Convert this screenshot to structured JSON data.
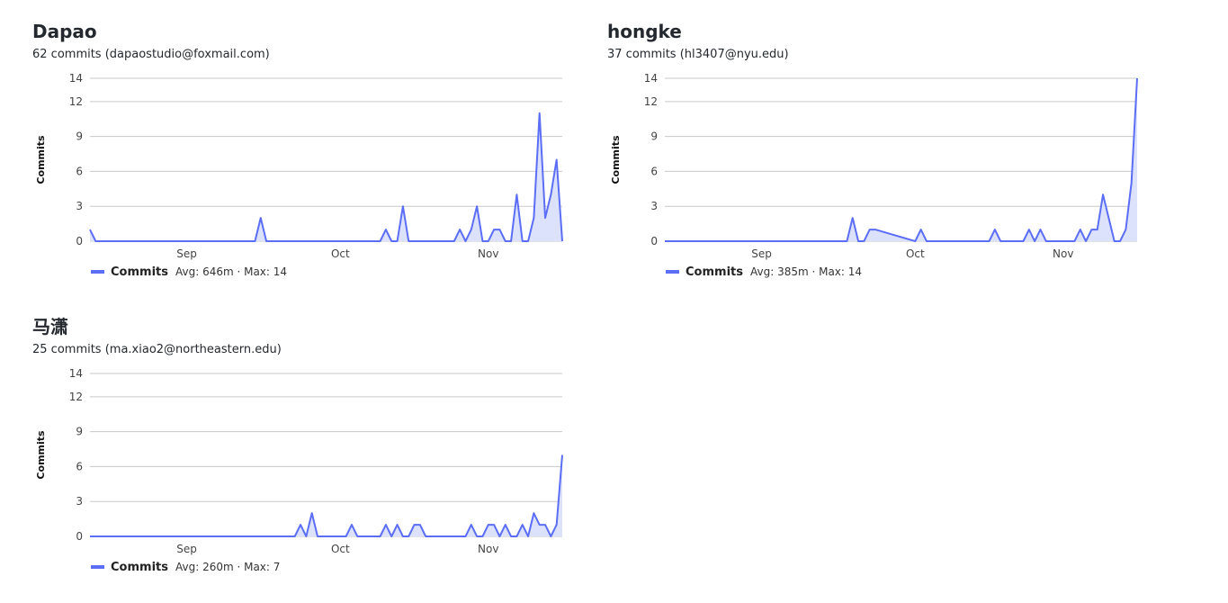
{
  "contributors": [
    {
      "name": "Dapao",
      "summary": "62 commits (dapaostudio@foxmail.com)"
    },
    {
      "name": "hongke",
      "summary": "37 commits (hl3407@nyu.edu)"
    },
    {
      "name": "马潇",
      "summary": "25 commits (ma.xiao2@northeastern.edu)"
    }
  ],
  "colors": {
    "line": "#5b6ef5",
    "fill": "#dde2fc",
    "grid": "#c8c8c8",
    "text": "#24292f"
  },
  "chart_data": [
    {
      "type": "area",
      "title": "Dapao",
      "xlabel": "",
      "ylabel": "Commits",
      "ylim": [
        0,
        14
      ],
      "yticks": [
        0,
        3,
        6,
        9,
        12,
        14
      ],
      "x_range": [
        0,
        83
      ],
      "xticks": [
        {
          "label": "Sep",
          "x": 17
        },
        {
          "label": "Oct",
          "x": 44
        },
        {
          "label": "Nov",
          "x": 70
        }
      ],
      "x": [
        0,
        1,
        29,
        30,
        31,
        51,
        52,
        53,
        54,
        55,
        56,
        64,
        65,
        66,
        67,
        68,
        69,
        70,
        71,
        72,
        73,
        74,
        75,
        76,
        77,
        78,
        79,
        80,
        81,
        82,
        83
      ],
      "values": [
        1,
        0,
        0,
        2,
        0,
        0,
        1,
        0,
        0,
        3,
        0,
        0,
        1,
        0,
        1,
        3,
        0,
        0,
        1,
        1,
        0,
        0,
        4,
        0,
        0,
        2,
        11,
        2,
        4,
        7,
        0
      ],
      "legend": {
        "label": "Commits",
        "summary": "Avg: 646m · Max: 14"
      }
    },
    {
      "type": "area",
      "title": "hongke",
      "xlabel": "",
      "ylabel": "Commits",
      "ylim": [
        0,
        14
      ],
      "yticks": [
        0,
        3,
        6,
        9,
        12,
        14
      ],
      "x_range": [
        0,
        83
      ],
      "xticks": [
        {
          "label": "Sep",
          "x": 17
        },
        {
          "label": "Oct",
          "x": 44
        },
        {
          "label": "Nov",
          "x": 70
        }
      ],
      "x": [
        0,
        32,
        33,
        34,
        35,
        36,
        37,
        44,
        45,
        46,
        57,
        58,
        59,
        63,
        64,
        65,
        66,
        67,
        72,
        73,
        74,
        75,
        76,
        77,
        78,
        79,
        80,
        81,
        82,
        83
      ],
      "values": [
        0,
        0,
        2,
        0,
        0,
        1,
        1,
        0,
        1,
        0,
        0,
        1,
        0,
        0,
        1,
        0,
        1,
        0,
        0,
        1,
        0,
        1,
        1,
        4,
        2,
        0,
        0,
        1,
        5,
        14
      ],
      "legend": {
        "label": "Commits",
        "summary": "Avg: 385m · Max: 14"
      }
    },
    {
      "type": "area",
      "title": "马潇",
      "xlabel": "",
      "ylabel": "Commits",
      "ylim": [
        0,
        14
      ],
      "yticks": [
        0,
        3,
        6,
        9,
        12,
        14
      ],
      "x_range": [
        0,
        83
      ],
      "xticks": [
        {
          "label": "Sep",
          "x": 17
        },
        {
          "label": "Oct",
          "x": 44
        },
        {
          "label": "Nov",
          "x": 70
        }
      ],
      "x": [
        0,
        36,
        37,
        38,
        39,
        40,
        45,
        46,
        47,
        51,
        52,
        53,
        54,
        55,
        56,
        57,
        58,
        59,
        60,
        66,
        67,
        68,
        69,
        70,
        71,
        72,
        73,
        74,
        75,
        76,
        77,
        78,
        79,
        80,
        81,
        82,
        83
      ],
      "values": [
        0,
        0,
        1,
        0,
        2,
        0,
        0,
        1,
        0,
        0,
        1,
        0,
        1,
        0,
        0,
        1,
        1,
        0,
        0,
        0,
        1,
        0,
        0,
        1,
        1,
        0,
        1,
        0,
        0,
        1,
        0,
        2,
        1,
        1,
        0,
        1,
        7
      ],
      "legend": {
        "label": "Commits",
        "summary": "Avg: 260m · Max: 7"
      }
    }
  ]
}
